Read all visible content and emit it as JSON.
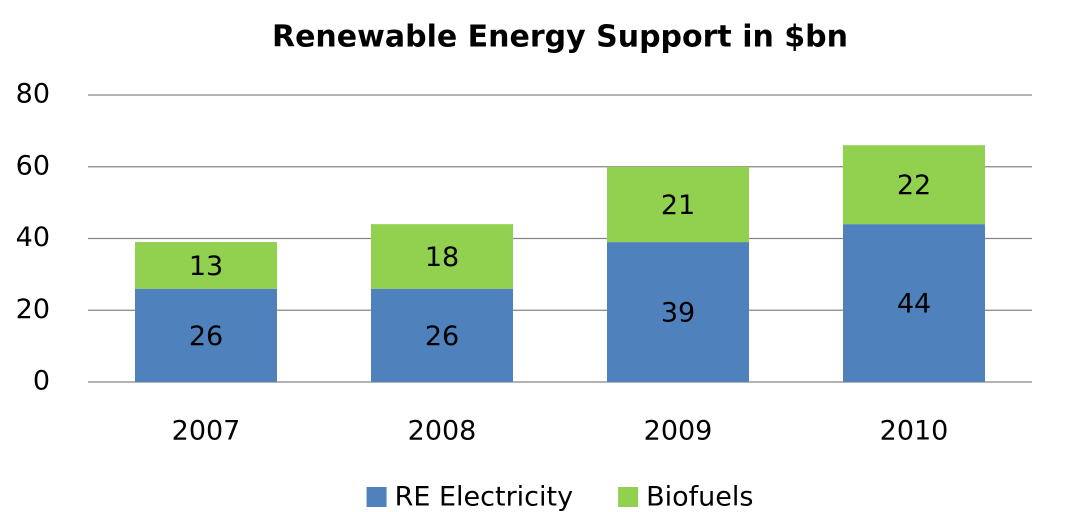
{
  "chart_data": {
    "type": "stacked_bar",
    "title": "Renewable Energy Support in $bn",
    "categories": [
      "2007",
      "2008",
      "2009",
      "2010"
    ],
    "series": [
      {
        "name": "RE Electricity",
        "color": "#4f81bd",
        "values": [
          26,
          26,
          39,
          44
        ]
      },
      {
        "name": "Biofuels",
        "color": "#92d050",
        "values": [
          13,
          18,
          21,
          22
        ]
      }
    ],
    "ylim": [
      0,
      80
    ],
    "yticks": [
      0,
      20,
      40,
      60,
      80
    ],
    "grid": true,
    "legend": "bottom"
  }
}
